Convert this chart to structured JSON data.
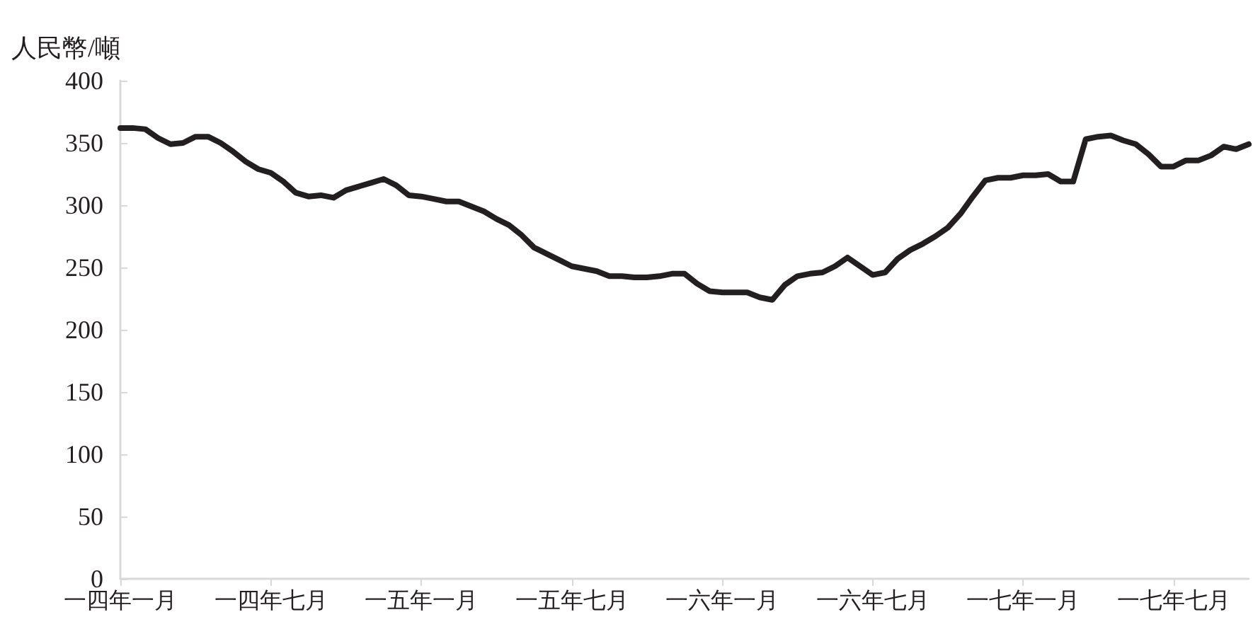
{
  "chart_data": {
    "type": "line",
    "ylabel": "人民幣/噸",
    "categories": [
      "一四年一月",
      null,
      null,
      null,
      null,
      null,
      null,
      null,
      null,
      null,
      null,
      null,
      "一四年七月",
      null,
      null,
      null,
      null,
      null,
      null,
      null,
      null,
      null,
      null,
      null,
      "一五年一月",
      null,
      null,
      null,
      null,
      null,
      null,
      null,
      null,
      null,
      null,
      null,
      "一五年七月",
      null,
      null,
      null,
      null,
      null,
      null,
      null,
      null,
      null,
      null,
      null,
      "一六年一月",
      null,
      null,
      null,
      null,
      null,
      null,
      null,
      null,
      null,
      null,
      null,
      "一六年七月",
      null,
      null,
      null,
      null,
      null,
      null,
      null,
      null,
      null,
      null,
      null,
      "一七年一月",
      null,
      null,
      null,
      null,
      null,
      null,
      null,
      null,
      null,
      null,
      null,
      "一七年七月",
      null,
      null,
      null,
      null,
      null,
      null
    ],
    "series": [
      {
        "color": "#231f20",
        "values": [
          362,
          362,
          361,
          354,
          349,
          350,
          355,
          355,
          350,
          343,
          335,
          329,
          326,
          319,
          310,
          307,
          308,
          306,
          312,
          315,
          318,
          321,
          316,
          308,
          307,
          305,
          303,
          303,
          299,
          295,
          289,
          284,
          276,
          266,
          261,
          256,
          251,
          249,
          247,
          243,
          243,
          242,
          242,
          243,
          245,
          245,
          237,
          231,
          230,
          230,
          230,
          226,
          224,
          236,
          243,
          245,
          246,
          251,
          258,
          251,
          244,
          246,
          257,
          264,
          269,
          275,
          282,
          293,
          307,
          320,
          322,
          322,
          324,
          324,
          325,
          319,
          319,
          353,
          355,
          356,
          352,
          349,
          341,
          331,
          331,
          336,
          336,
          340,
          347,
          345,
          349
        ]
      }
    ],
    "ylim": [
      0,
      400
    ],
    "yticks": [
      0,
      50,
      100,
      150,
      200,
      250,
      300,
      350,
      400
    ],
    "grid": false,
    "marker": "none",
    "line_style": "solid"
  }
}
